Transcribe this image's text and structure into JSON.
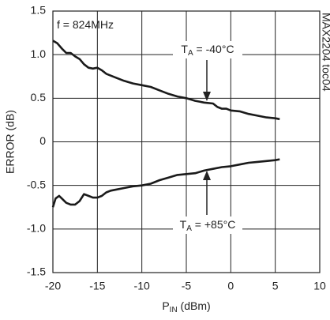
{
  "chart_data": {
    "type": "line",
    "x_label": {
      "text": "P",
      "sub": "IN",
      "rest": " (dBm)"
    },
    "y_label": "ERROR (dB)",
    "side_note": "MAX2204 toc04",
    "annotations": [
      {
        "text": "f = 824MHz"
      },
      {
        "text": "T",
        "sub": "A",
        "rest": " = -40°C"
      },
      {
        "text": "T",
        "sub": "A",
        "rest": " = +85°C"
      }
    ],
    "xlim": [
      -20,
      10
    ],
    "xticks": [
      -20,
      -15,
      -10,
      -5,
      0,
      5,
      10
    ],
    "ylim": [
      -1.5,
      1.5
    ],
    "yticks": [
      -1.5,
      {
        "value": -1,
        "label": "-1.0"
      },
      -0.5,
      0,
      0.5,
      {
        "value": 1,
        "label": "1.0"
      },
      1.5
    ],
    "grid": true,
    "series": [
      {
        "color": "#1a1a1a",
        "x": [
          -20,
          -19.5,
          -19,
          -18.5,
          -18,
          -17.5,
          -17,
          -16.5,
          -16,
          -15.5,
          -15,
          -14.5,
          -14,
          -13,
          -12,
          -11,
          -10,
          -9,
          -8,
          -7,
          -6,
          -5,
          -4,
          -3,
          -2,
          -1.5,
          -1,
          -0.5,
          0,
          1,
          2,
          3,
          4,
          5,
          5.5
        ],
        "values": [
          1.16,
          1.13,
          1.07,
          1.02,
          1.02,
          0.98,
          0.95,
          0.89,
          0.85,
          0.84,
          0.85,
          0.82,
          0.78,
          0.74,
          0.7,
          0.67,
          0.65,
          0.63,
          0.59,
          0.55,
          0.52,
          0.5,
          0.47,
          0.45,
          0.44,
          0.4,
          0.38,
          0.38,
          0.36,
          0.35,
          0.32,
          0.3,
          0.28,
          0.27,
          0.26
        ]
      },
      {
        "color": "#1a1a1a",
        "x": [
          -20,
          -19.7,
          -19.3,
          -19,
          -18.5,
          -18,
          -17.5,
          -17,
          -16.5,
          -16,
          -15.5,
          -15,
          -14.5,
          -14,
          -13.5,
          -13,
          -12,
          -11,
          -10,
          -9,
          -8,
          -7,
          -6,
          -5,
          -4,
          -3,
          -2,
          -1,
          0,
          1,
          2,
          3,
          4,
          5,
          5.5
        ],
        "values": [
          -0.75,
          -0.65,
          -0.62,
          -0.65,
          -0.7,
          -0.72,
          -0.72,
          -0.68,
          -0.6,
          -0.62,
          -0.64,
          -0.64,
          -0.62,
          -0.58,
          -0.56,
          -0.55,
          -0.53,
          -0.51,
          -0.5,
          -0.48,
          -0.44,
          -0.41,
          -0.38,
          -0.37,
          -0.36,
          -0.33,
          -0.31,
          -0.29,
          -0.28,
          -0.26,
          -0.24,
          -0.23,
          -0.22,
          -0.21,
          -0.2
        ]
      }
    ]
  }
}
